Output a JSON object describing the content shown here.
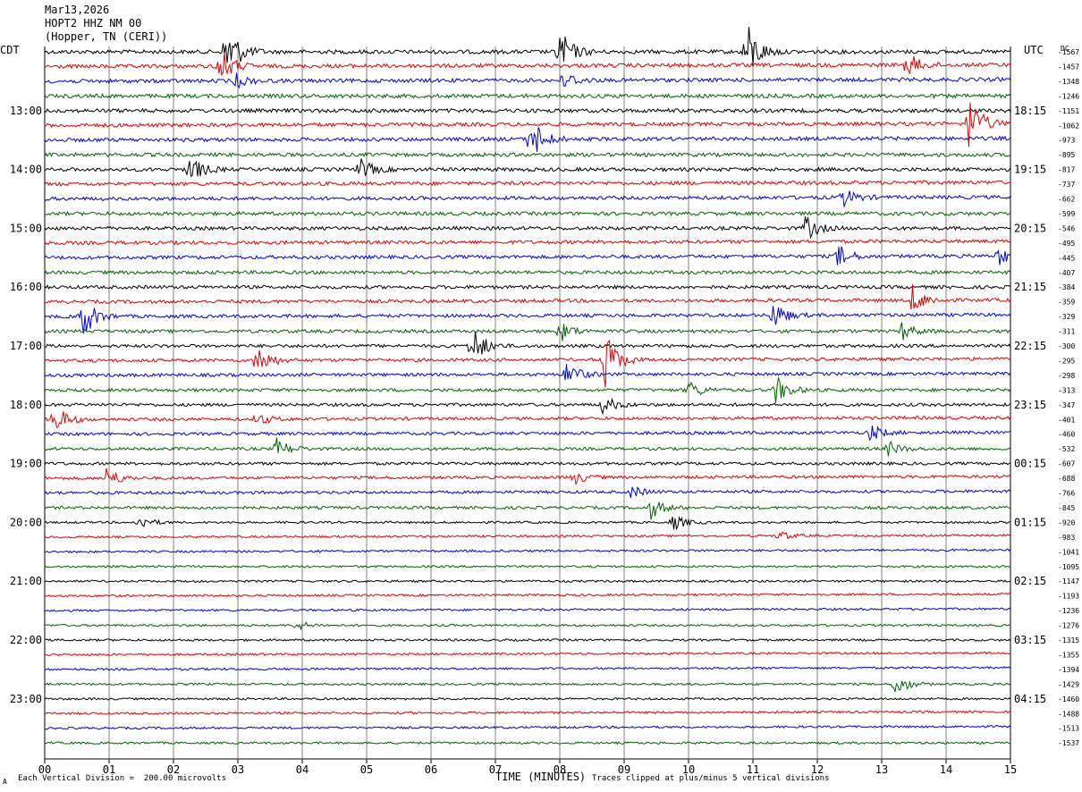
{
  "header": {
    "date": "Mar13,2026",
    "station": "HOPT2 HHZ NM 00",
    "location": "(Hopper, TN (CERI))"
  },
  "labels": {
    "left_zone": "CDT",
    "right_zone": "UTC",
    "dc": "DC",
    "xlabel": "TIME (MINUTES)",
    "scale_note": "Each Vertical Division =  200.00 microvolts",
    "clip_note": "Traces clipped at plus/minus 5 vertical divisions",
    "corner": "A"
  },
  "chart_data": {
    "type": "line",
    "title": "",
    "xlabel": "TIME (MINUTES)",
    "xlim": [
      0,
      15
    ],
    "x_ticks": [
      "00",
      "01",
      "02",
      "03",
      "04",
      "05",
      "06",
      "07",
      "08",
      "09",
      "10",
      "11",
      "12",
      "13",
      "14",
      "15"
    ],
    "left_hour_labels": [
      "13:00",
      "14:00",
      "15:00",
      "16:00",
      "17:00",
      "18:00",
      "19:00",
      "20:00",
      "21:00",
      "22:00",
      "23:00"
    ],
    "right_hour_labels": [
      "18:15",
      "19:15",
      "20:15",
      "21:15",
      "22:15",
      "23:15",
      "00:15",
      "01:15",
      "02:15",
      "03:15",
      "04:15"
    ],
    "trace_colors": [
      "#000000",
      "#e00000",
      "#0000e0",
      "#006400"
    ],
    "trace_count": 48,
    "dc_offsets": [
      "-1567",
      "-1457",
      "-1348",
      "-1246",
      "-1151",
      "-1062",
      "-973",
      "-895",
      "-817",
      "-737",
      "-662",
      "-599",
      "-546",
      "-495",
      "-445",
      "-407",
      "-384",
      "-359",
      "-329",
      "-311",
      "-300",
      "-295",
      "-298",
      "-313",
      "-347",
      "-401",
      "-460",
      "-532",
      "-607",
      "-688",
      "-766",
      "-845",
      "-920",
      "-983",
      "-1041",
      "-1095",
      "-1147",
      "-1193",
      "-1236",
      "-1276",
      "-1315",
      "-1355",
      "-1394",
      "-1429",
      "-1460",
      "-1488",
      "-1513",
      "-1537"
    ],
    "events": [
      {
        "trace": 0,
        "minute": 2.82,
        "amp": 3.0
      },
      {
        "trace": 0,
        "minute": 7.98,
        "amp": 2.4
      },
      {
        "trace": 0,
        "minute": 10.88,
        "amp": 3.2
      },
      {
        "trace": 1,
        "minute": 2.7,
        "amp": 2.0
      },
      {
        "trace": 1,
        "minute": 13.4,
        "amp": 1.2
      },
      {
        "trace": 2,
        "minute": 2.95,
        "amp": 0.7
      },
      {
        "trace": 2,
        "minute": 8.05,
        "amp": 0.9
      },
      {
        "trace": 5,
        "minute": 14.35,
        "amp": 2.8
      },
      {
        "trace": 6,
        "minute": 7.55,
        "amp": 2.2
      },
      {
        "trace": 8,
        "minute": 2.25,
        "amp": 1.4
      },
      {
        "trace": 8,
        "minute": 4.9,
        "amp": 1.0
      },
      {
        "trace": 10,
        "minute": 12.4,
        "amp": 0.9
      },
      {
        "trace": 12,
        "minute": 11.8,
        "amp": 1.3
      },
      {
        "trace": 14,
        "minute": 12.3,
        "amp": 1.2
      },
      {
        "trace": 14,
        "minute": 14.8,
        "amp": 0.9
      },
      {
        "trace": 17,
        "minute": 13.45,
        "amp": 1.6
      },
      {
        "trace": 18,
        "minute": 0.55,
        "amp": 2.6
      },
      {
        "trace": 18,
        "minute": 11.3,
        "amp": 1.5
      },
      {
        "trace": 19,
        "minute": 8.0,
        "amp": 1.0
      },
      {
        "trace": 19,
        "minute": 13.3,
        "amp": 0.9
      },
      {
        "trace": 20,
        "minute": 6.62,
        "amp": 2.2
      },
      {
        "trace": 21,
        "minute": 3.3,
        "amp": 1.6
      },
      {
        "trace": 21,
        "minute": 8.68,
        "amp": 3.2
      },
      {
        "trace": 22,
        "minute": 8.1,
        "amp": 1.4
      },
      {
        "trace": 23,
        "minute": 10.0,
        "amp": 0.9
      },
      {
        "trace": 23,
        "minute": 11.35,
        "amp": 1.4
      },
      {
        "trace": 24,
        "minute": 8.65,
        "amp": 1.0
      },
      {
        "trace": 25,
        "minute": 0.15,
        "amp": 1.5
      },
      {
        "trace": 25,
        "minute": 3.3,
        "amp": 0.6
      },
      {
        "trace": 26,
        "minute": 12.8,
        "amp": 0.9
      },
      {
        "trace": 27,
        "minute": 3.6,
        "amp": 1.0
      },
      {
        "trace": 27,
        "minute": 13.1,
        "amp": 0.7
      },
      {
        "trace": 29,
        "minute": 0.95,
        "amp": 1.1
      },
      {
        "trace": 29,
        "minute": 8.2,
        "amp": 0.7
      },
      {
        "trace": 30,
        "minute": 9.1,
        "amp": 0.6
      },
      {
        "trace": 31,
        "minute": 9.4,
        "amp": 1.1
      },
      {
        "trace": 32,
        "minute": 1.45,
        "amp": 0.7
      },
      {
        "trace": 32,
        "minute": 9.75,
        "amp": 0.8
      },
      {
        "trace": 33,
        "minute": 11.4,
        "amp": 0.5
      },
      {
        "trace": 39,
        "minute": 3.9,
        "amp": 0.5
      },
      {
        "trace": 43,
        "minute": 13.2,
        "amp": 1.2
      }
    ]
  }
}
